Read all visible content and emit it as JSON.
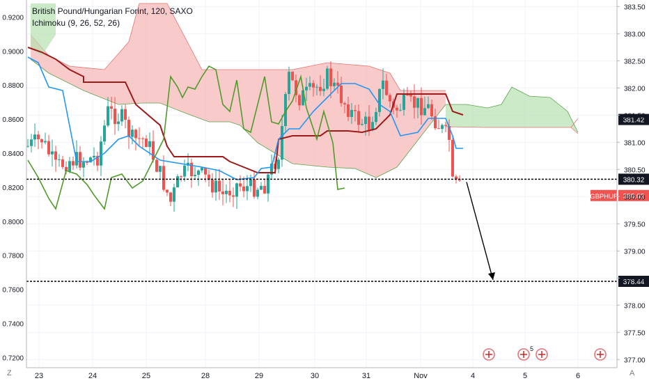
{
  "header": {
    "title": "British Pound/Hungarian Forint, 120, SAXO",
    "indicator": "Ichimoku (9, 26, 52, 26)"
  },
  "corner": {
    "left": "Z",
    "right": "A"
  },
  "colors": {
    "up": "#26a69a",
    "down": "#ef5350",
    "tenkan": "#2196f3",
    "kijun": "#9c1a1a",
    "chikou": "#4f9a2a",
    "cloud_bull": "#b7e1b0",
    "cloud_bear": "#f7b8b8",
    "price_label_bg": "#f05350"
  },
  "chart_data": {
    "type": "candlestick",
    "title": "British Pound/Hungarian Forint, 120, SAXO",
    "left_axis": {
      "ticks": [
        "0.9200",
        "0.9000",
        "0.8800",
        "0.8600",
        "0.8400",
        "0.8200",
        "0.8000",
        "0.7800",
        "0.7600",
        "0.7400",
        "0.7200"
      ],
      "range": [
        0.714,
        0.93
      ]
    },
    "right_axis": {
      "ticks": [
        "383.50",
        "383.00",
        "382.50",
        "382.00",
        "381.50",
        "381.00",
        "380.50",
        "380.00",
        "379.50",
        "379.00",
        "378.50",
        "378.00",
        "377.50",
        "377.00"
      ],
      "range": [
        376.85,
        383.62
      ]
    },
    "x_axis": {
      "labels": [
        "23",
        "24",
        "25",
        "28",
        "29",
        "30",
        "31",
        "Nov",
        "4",
        "5",
        "6"
      ]
    },
    "markers": [
      {
        "label": "381.42",
        "price": 381.42,
        "style": "label"
      },
      {
        "label": "380.32",
        "price": 380.32,
        "style": "dotted-line"
      },
      {
        "label": "378.44",
        "price": 378.44,
        "style": "dotted-line"
      },
      {
        "label": "GBPHUF",
        "value": "380.02",
        "price": 380.02,
        "style": "current"
      }
    ],
    "projection": {
      "from_price": 380.32,
      "to_price": 378.44,
      "from_day": "Nov",
      "to_day": "4-5"
    },
    "event_icons": [
      {
        "day": "4"
      },
      {
        "day": "5",
        "count": "5"
      },
      {
        "day": "5"
      },
      {
        "day": "6"
      }
    ],
    "candles": []
  }
}
